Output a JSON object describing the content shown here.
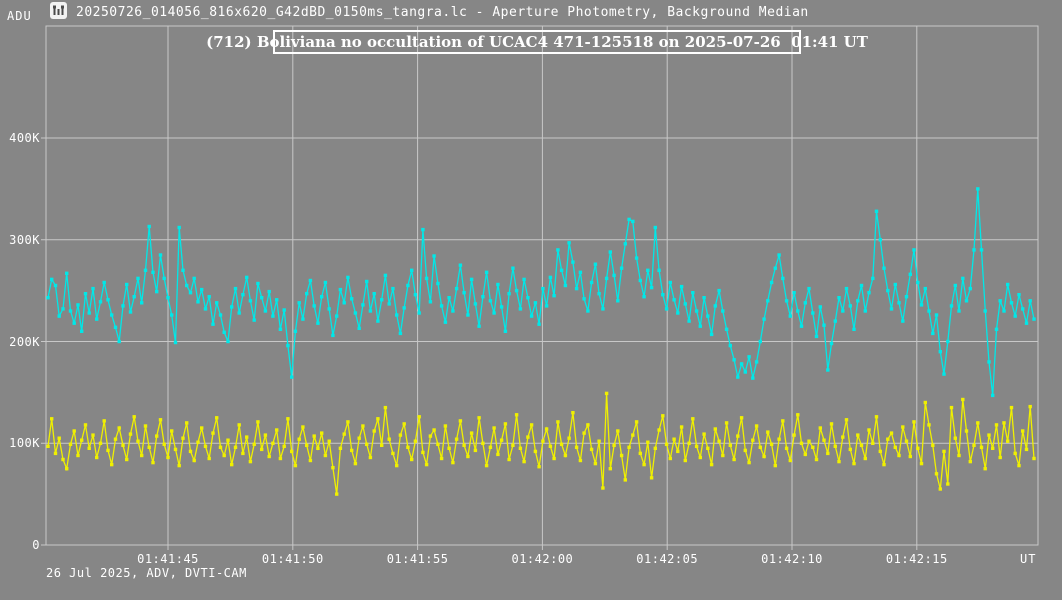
{
  "header": {
    "axis_unit_label": "ADU",
    "icon": "lightcurve-chart-icon",
    "window_title": "20250726_014056_816x620_G42dBD_0150ms_tangra.lc - Aperture Photometry, Background Median"
  },
  "annotation": {
    "text": "(712) Boliviana no occultation of UCAC4 471-125518 on 2025-07-26  01:41 UT"
  },
  "footer": {
    "text": "26 Jul 2025, ADV, DVTI-CAM"
  },
  "colors": {
    "background": "#868686",
    "grid": "#c8c8c8",
    "text": "#ffffff",
    "series_target": "#00e8e8",
    "series_comparison": "#f0f000"
  },
  "chart_data": {
    "type": "line",
    "title": "(712) Boliviana no occultation of UCAC4 471-125518 on 2025-07-26  01:41 UT",
    "ylabel": "ADU",
    "xlabel": "UT",
    "grid": true,
    "legend": "none",
    "sample_interval_s": 0.15,
    "ylim": [
      0,
      510000
    ],
    "y_tick_labels": [
      "0",
      "100K",
      "200K",
      "300K",
      "400K"
    ],
    "y_tick_values_adu": [
      0,
      100000,
      200000,
      300000,
      400000
    ],
    "x_tick_labels": [
      "01:41:45",
      "01:41:50",
      "01:41:55",
      "01:42:00",
      "01:42:05",
      "01:42:10",
      "01:42:15"
    ],
    "series": [
      {
        "name": "star-aperture-cyan",
        "color": "#00e8e8",
        "values_kadu": [
          243,
          261,
          255,
          225,
          232,
          267,
          230,
          218,
          236,
          210,
          247,
          228,
          252,
          222,
          239,
          258,
          241,
          226,
          214,
          200,
          235,
          256,
          229,
          244,
          262,
          238,
          270,
          313,
          268,
          249,
          285,
          262,
          243,
          226,
          199,
          312,
          270,
          255,
          248,
          262,
          239,
          251,
          232,
          244,
          217,
          238,
          226,
          209,
          200,
          234,
          252,
          228,
          246,
          263,
          240,
          221,
          257,
          243,
          230,
          249,
          225,
          241,
          212,
          231,
          196,
          165,
          210,
          238,
          222,
          247,
          260,
          235,
          218,
          244,
          258,
          232,
          206,
          225,
          251,
          238,
          263,
          242,
          228,
          213,
          236,
          259,
          230,
          247,
          220,
          241,
          265,
          237,
          252,
          226,
          208,
          233,
          255,
          270,
          246,
          228,
          310,
          262,
          239,
          284,
          257,
          235,
          219,
          243,
          230,
          252,
          275,
          248,
          226,
          261,
          237,
          215,
          244,
          268,
          240,
          228,
          256,
          234,
          210,
          247,
          272,
          250,
          232,
          261,
          243,
          225,
          238,
          217,
          252,
          235,
          263,
          245,
          290,
          270,
          255,
          297,
          278,
          252,
          268,
          242,
          230,
          258,
          276,
          247,
          232,
          262,
          288,
          265,
          240,
          272,
          296,
          320,
          318,
          282,
          260,
          244,
          270,
          253,
          312,
          270,
          246,
          232,
          258,
          241,
          228,
          254,
          237,
          220,
          248,
          230,
          215,
          243,
          225,
          207,
          235,
          250,
          230,
          212,
          196,
          182,
          165,
          178,
          170,
          185,
          164,
          180,
          200,
          222,
          240,
          258,
          272,
          285,
          262,
          240,
          225,
          248,
          230,
          215,
          238,
          252,
          228,
          205,
          234,
          216,
          172,
          198,
          220,
          243,
          230,
          252,
          235,
          212,
          240,
          255,
          230,
          248,
          262,
          328,
          300,
          272,
          250,
          232,
          256,
          238,
          220,
          244,
          266,
          290,
          258,
          236,
          252,
          230,
          208,
          226,
          190,
          168,
          200,
          235,
          255,
          230,
          262,
          240,
          252,
          290,
          350,
          290,
          230,
          180,
          147,
          212,
          240,
          230,
          256,
          238,
          225,
          246,
          232,
          218,
          240,
          222
        ]
      },
      {
        "name": "comparison-aperture-yellow",
        "color": "#f0f000",
        "values_kadu": [
          97,
          124,
          90,
          105,
          84,
          75,
          99,
          112,
          88,
          103,
          118,
          95,
          108,
          86,
          100,
          122,
          93,
          79,
          104,
          115,
          98,
          84,
          109,
          126,
          102,
          88,
          117,
          96,
          81,
          107,
          123,
          99,
          86,
          112,
          94,
          78,
          105,
          120,
          92,
          83,
          101,
          115,
          97,
          85,
          110,
          125,
          96,
          88,
          103,
          79,
          96,
          118,
          90,
          106,
          82,
          99,
          121,
          94,
          108,
          87,
          100,
          113,
          85,
          97,
          124,
          92,
          78,
          104,
          116,
          98,
          83,
          107,
          95,
          110,
          88,
          102,
          76,
          50,
          95,
          109,
          121,
          93,
          80,
          105,
          117,
          99,
          86,
          112,
          124,
          98,
          135,
          104,
          90,
          78,
          108,
          119,
          96,
          84,
          102,
          126,
          91,
          79,
          107,
          113,
          99,
          85,
          117,
          95,
          81,
          104,
          122,
          98,
          87,
          110,
          93,
          125,
          100,
          78,
          96,
          115,
          89,
          103,
          119,
          84,
          98,
          128,
          95,
          82,
          106,
          118,
          92,
          77,
          102,
          114,
          97,
          85,
          121,
          99,
          88,
          105,
          130,
          96,
          83,
          110,
          118,
          94,
          80,
          102,
          56,
          149,
          75,
          98,
          112,
          88,
          64,
          96,
          108,
          121,
          90,
          79,
          101,
          66,
          95,
          113,
          127,
          99,
          85,
          104,
          92,
          116,
          83,
          100,
          124,
          97,
          86,
          109,
          95,
          79,
          114,
          102,
          88,
          120,
          98,
          84,
          107,
          125,
          93,
          81,
          103,
          117,
          96,
          87,
          111,
          99,
          78,
          104,
          122,
          95,
          83,
          108,
          128,
          100,
          89,
          102,
          96,
          84,
          115,
          103,
          90,
          119,
          97,
          82,
          106,
          123,
          94,
          80,
          108,
          98,
          85,
          113,
          100,
          126,
          92,
          79,
          104,
          110,
          96,
          88,
          116,
          102,
          87,
          121,
          95,
          80,
          140,
          118,
          98,
          70,
          55,
          92,
          60,
          135,
          105,
          88,
          143,
          112,
          82,
          98,
          120,
          96,
          75,
          108,
          95,
          118,
          86,
          120,
          102,
          135,
          90,
          78,
          112,
          94,
          136,
          85
        ]
      }
    ]
  }
}
